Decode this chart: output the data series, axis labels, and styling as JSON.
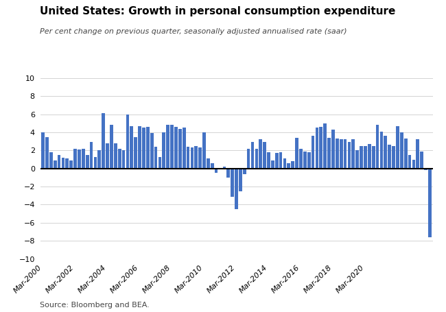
{
  "title": "United States: Growth in personal consumption expenditure",
  "subtitle": "Per cent change on previous quarter, seasonally adjusted annualised rate (saar)",
  "source": "Source: Bloomberg and BEA.",
  "bar_color": "#4472C4",
  "ylim": [
    -10,
    10
  ],
  "yticks": [
    -10,
    -8,
    -6,
    -4,
    -2,
    0,
    2,
    4,
    6,
    8,
    10
  ],
  "xtick_labels": [
    "Mar-2000",
    "Mar-2002",
    "Mar-2004",
    "Mar-2006",
    "Mar-2008",
    "Mar-2010",
    "Mar-2012",
    "Mar-2014",
    "Mar-2016",
    "Mar-2018",
    "Mar-2020"
  ],
  "values": [
    4.0,
    3.5,
    1.8,
    0.9,
    1.5,
    1.2,
    1.1,
    0.9,
    2.2,
    2.1,
    2.2,
    1.5,
    2.9,
    1.3,
    2.0,
    6.1,
    2.8,
    4.8,
    2.8,
    2.2,
    2.0,
    6.0,
    4.7,
    3.5,
    4.7,
    4.5,
    4.6,
    3.9,
    2.4,
    1.3,
    4.0,
    4.8,
    4.8,
    4.6,
    4.4,
    4.5,
    2.4,
    2.3,
    2.5,
    2.3,
    4.0,
    1.1,
    0.6,
    -0.5,
    -0.1,
    0.2,
    -1.0,
    -3.1,
    -4.5,
    -2.5,
    -0.6,
    2.2,
    2.9,
    2.2,
    3.2,
    2.9,
    1.8,
    0.9,
    1.7,
    1.8,
    1.1,
    0.6,
    0.8,
    3.4,
    2.2,
    1.9,
    1.8,
    3.6,
    4.5,
    4.6,
    5.0,
    3.4,
    4.3,
    3.3,
    3.2,
    3.2,
    2.9,
    3.2,
    2.0,
    2.5,
    2.5,
    2.7,
    2.5,
    4.8,
    4.1,
    3.6,
    2.6,
    2.5,
    4.7,
    4.0,
    3.3,
    1.5,
    1.0,
    3.2,
    1.9,
    -0.2,
    -7.6
  ]
}
